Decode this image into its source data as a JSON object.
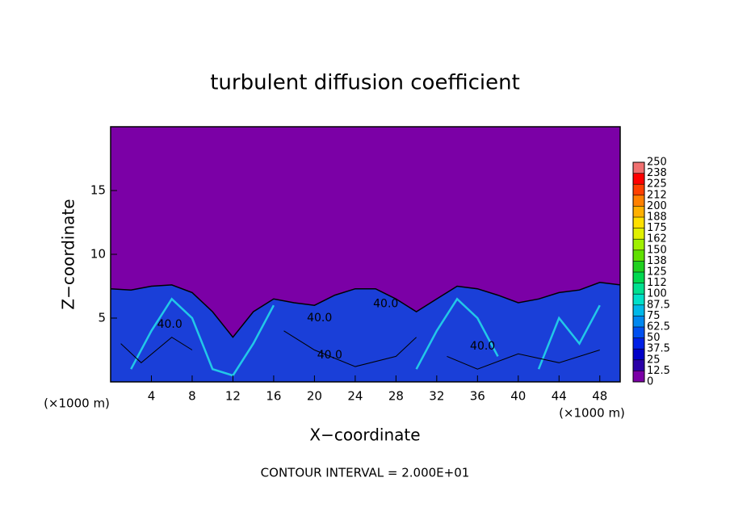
{
  "chart_data": {
    "type": "contour",
    "title": "turbulent diffusion coefficient",
    "xlabel": "X−coordinate",
    "ylabel": "Z−coordinate",
    "x_unit_left": "(×1000 m)",
    "x_unit_right": "(×1000 m)",
    "footer": "CONTOUR INTERVAL = 2.000E+01",
    "xlim": [
      0,
      50
    ],
    "ylim": [
      0,
      20
    ],
    "xticks": [
      4,
      8,
      12,
      16,
      20,
      24,
      28,
      32,
      36,
      40,
      44,
      48
    ],
    "yticks": [
      5,
      10,
      15
    ],
    "background_color": "#7b00a6",
    "field_color": "#1a3fd8",
    "layer_top": {
      "x": [
        0,
        2,
        4,
        6,
        8,
        10,
        12,
        14,
        16,
        18,
        20,
        22,
        24,
        26,
        28,
        30,
        32,
        34,
        36,
        38,
        40,
        42,
        44,
        46,
        48,
        50
      ],
      "z": [
        7.3,
        7.2,
        7.5,
        7.6,
        7.0,
        5.5,
        3.5,
        5.5,
        6.5,
        6.2,
        6.0,
        6.8,
        7.3,
        7.3,
        6.5,
        5.5,
        6.5,
        7.5,
        7.3,
        6.8,
        6.2,
        6.5,
        7.0,
        7.2,
        7.8,
        7.6
      ]
    },
    "annotations": [
      {
        "text": "40.0",
        "x": 5.8,
        "z": 4.5
      },
      {
        "text": "40.0",
        "x": 20.5,
        "z": 5.0
      },
      {
        "text": "40.0",
        "x": 21.5,
        "z": 2.1
      },
      {
        "text": "40.0",
        "x": 27.0,
        "z": 6.1
      },
      {
        "text": "40.0",
        "x": 36.5,
        "z": 2.8
      }
    ],
    "colorbar": {
      "levels": [
        0,
        12.5,
        25,
        37.5,
        50,
        62.5,
        75,
        87.5,
        100,
        112,
        125,
        138,
        150,
        162,
        175,
        188,
        200,
        212,
        225,
        238,
        250
      ],
      "colors": [
        "#7b00a6",
        "#2a00a8",
        "#0000c8",
        "#0020e6",
        "#0050f0",
        "#0088f0",
        "#00b8e8",
        "#00e0c8",
        "#00e090",
        "#00d850",
        "#20d020",
        "#60e000",
        "#a0f000",
        "#e0f000",
        "#ffe000",
        "#ffb000",
        "#ff8000",
        "#ff4000",
        "#ff0000",
        "#f07070"
      ]
    }
  }
}
